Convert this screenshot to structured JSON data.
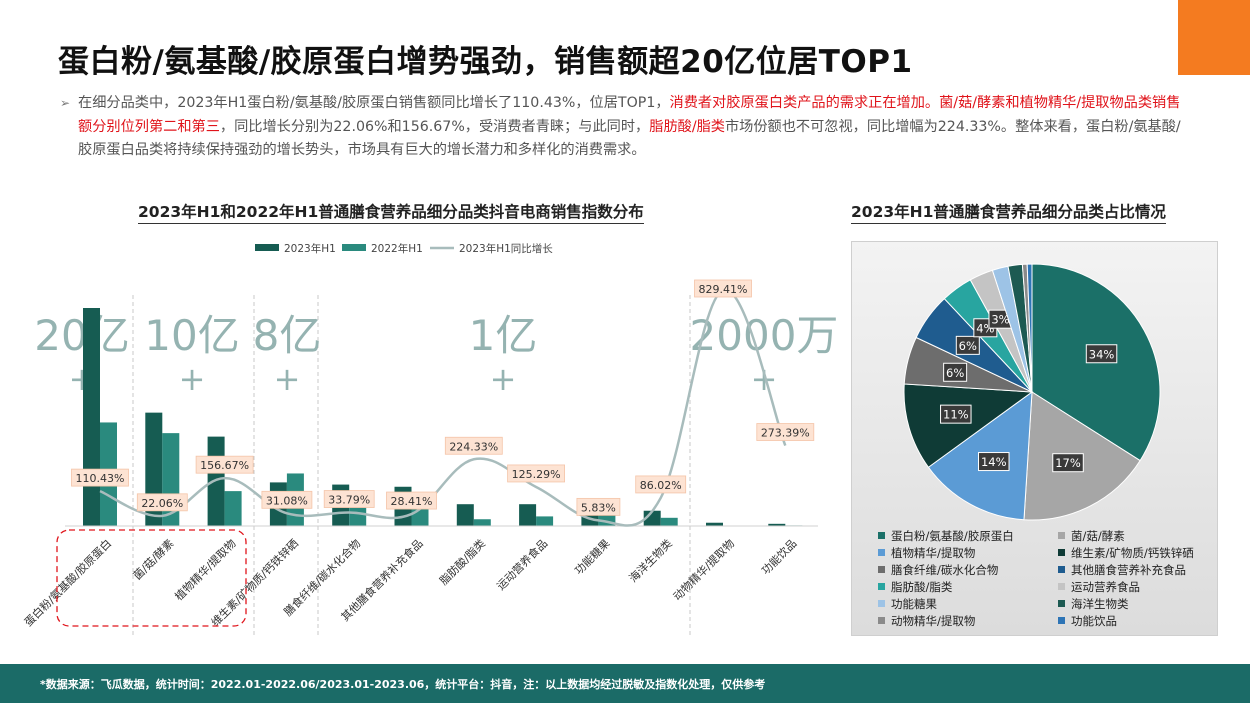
{
  "title": "蛋白粉/氨基酸/胶原蛋白增势强劲，销售额超20亿位居TOP1",
  "summary": {
    "bullet": "➢",
    "p1": "在细分品类中，2023年H1蛋白粉/氨基酸/胶原蛋白销售额同比增长了110.43%，位居TOP1，",
    "p2_red": "消费者对胶原蛋白类产品的需求正在增加。菌/菇/酵素和植物精华/提取物品类销售额分别位列第二和第三",
    "p3": "，同比增长分别为22.06%和156.67%，受消费者青睐；与此同时，",
    "p4_red": "脂肪酸/脂类",
    "p5": "市场份额也不可忽视，同比增幅为224.33%。整体来看，蛋白粉/氨基酸/胶原蛋白品类将持续保持强劲的增长势头，市场具有巨大的增长潜力和多样化的消费需求。"
  },
  "bar_chart_title": "2023年H1和2022年H1普通膳食营养品细分品类抖音电商销售指数分布",
  "pie_chart_title": "2023年H1普通膳食营养品细分品类占比情况",
  "colors": {
    "accent_orange": "#f47b20",
    "footer_teal": "#1b6b67",
    "red_text": "#e0141b"
  },
  "bar_annotations": [
    {
      "line1": "20亿",
      "line2": "+"
    },
    {
      "line1": "10亿",
      "line2": "+"
    },
    {
      "line1": "8亿",
      "line2": "+"
    },
    {
      "line1": "1亿",
      "line2": "+"
    },
    {
      "line1": "2000万",
      "line2": "+"
    }
  ],
  "chart_data": [
    {
      "type": "bar",
      "title": "2023年H1和2022年H1普通膳食营养品细分品类抖音电商销售指数分布",
      "categories": [
        "蛋白粉/氨基酸/胶原蛋白",
        "菌/菇/酵素",
        "植物精华/提取物",
        "维生素/矿物质/钙铁锌硒",
        "膳食纤维/碳水化合物",
        "其他膳食营养补充食品",
        "脂肪酸/脂类",
        "运动营养食品",
        "功能糖果",
        "海洋生物类",
        "动物精华/提取物",
        "功能饮品"
      ],
      "series": [
        {
          "name": "2023年H1",
          "values": [
            100,
            52,
            41,
            20,
            19,
            18,
            10,
            10,
            6,
            7,
            1.5,
            1
          ],
          "color": "#165c52"
        },
        {
          "name": "2022年H1",
          "values": [
            47.5,
            42.6,
            16,
            24.1,
            14.2,
            14.0,
            3.1,
            4.4,
            5.67,
            3.76,
            0.16,
            0.27
          ],
          "color": "#2a8a7e"
        },
        {
          "name": "2023年H1同比增长",
          "values": [
            110.43,
            22.06,
            156.67,
            31.08,
            33.79,
            28.41,
            224.33,
            125.29,
            5.83,
            86.02,
            829.41,
            273.39
          ],
          "labels": [
            "110.43%",
            "22.06%",
            "156.67%",
            "31.08%",
            "33.79%",
            "28.41%",
            "224.33%",
            "125.29%",
            "5.83%",
            "86.02%",
            "829.41%",
            "273.39%"
          ],
          "color": "#a8bcbc"
        }
      ],
      "legend": "top-center",
      "grid": false
    },
    {
      "type": "pie",
      "title": "2023年H1普通膳食营养品细分品类占比情况",
      "slices": [
        {
          "label": "蛋白粉/氨基酸/胶原蛋白",
          "value": 34,
          "text": "34%",
          "color": "#1b7068"
        },
        {
          "label": "菌/菇/酵素",
          "value": 17,
          "text": "17%",
          "color": "#a6a6a6"
        },
        {
          "label": "植物精华/提取物",
          "value": 14,
          "text": "14%",
          "color": "#5b9bd5"
        },
        {
          "label": "维生素/矿物质/钙铁锌硒",
          "value": 11,
          "text": "11%",
          "color": "#0f3b36"
        },
        {
          "label": "膳食纤维/碳水化合物",
          "value": 6,
          "text": "6%",
          "color": "#6d6d6d"
        },
        {
          "label": "其他膳食营养补充食品",
          "value": 6,
          "text": "6%",
          "color": "#1f5c8f"
        },
        {
          "label": "脂肪酸/脂类",
          "value": 4,
          "text": "4%",
          "color": "#28a5a0"
        },
        {
          "label": "运动营养食品",
          "value": 3,
          "text": "3%",
          "color": "#c4c4c4"
        },
        {
          "label": "功能糖果",
          "value": 2,
          "text": "",
          "color": "#9dc3e6"
        },
        {
          "label": "海洋生物类",
          "value": 1.8,
          "text": "",
          "color": "#1d5a52"
        },
        {
          "label": "动物精华/提取物",
          "value": 0.6,
          "text": "",
          "color": "#8a8a8a"
        },
        {
          "label": "功能饮品",
          "value": 0.6,
          "text": "",
          "color": "#2e75b6"
        }
      ],
      "legend": "bottom"
    }
  ],
  "footer": "*数据来源：飞瓜数据，统计时间：2022.01-2022.06/2023.01-2023.06，统计平台：抖音，注：以上数据均经过脱敏及指数化处理，仅供参考"
}
